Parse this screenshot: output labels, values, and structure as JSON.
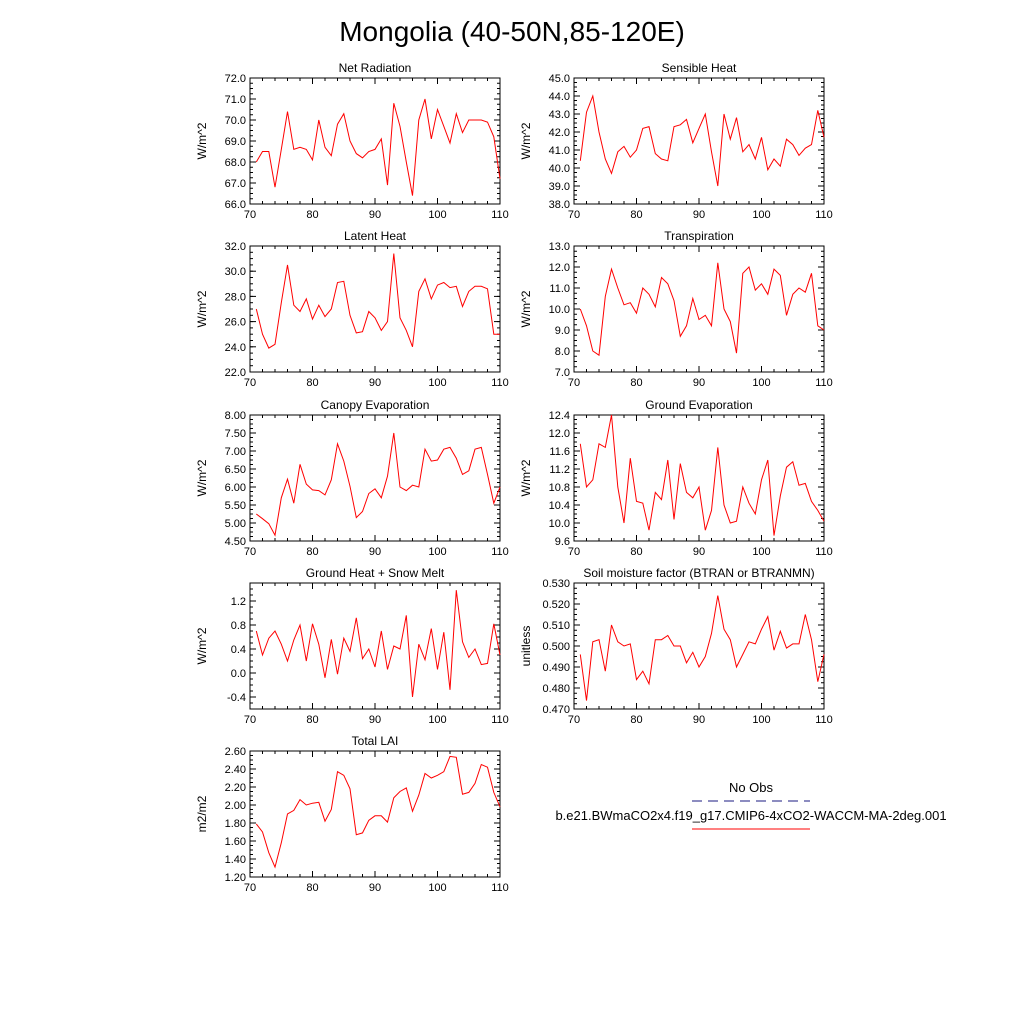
{
  "figure_title": "Mongolia (40-50N,85-120E)",
  "series_color": "#ff0000",
  "legend": {
    "obs_label": "No Obs",
    "obs_color": "#1a1a80",
    "model_label": "b.e21.BWmaCO2x4.f19_g17.CMIP6-4xCO2-WACCM-MA-2deg.001",
    "model_color": "#ff0000"
  },
  "chart_data": [
    {
      "type": "line",
      "title": "Net Radiation",
      "ylabel": "W/m^2",
      "xlabel": "",
      "xlim": [
        70,
        110
      ],
      "xticks": [
        70,
        80,
        90,
        100,
        110
      ],
      "ylim": [
        66,
        72
      ],
      "yticks": [
        "66.0",
        "67.0",
        "68.0",
        "69.0",
        "70.0",
        "71.0",
        "72.0"
      ],
      "x": [
        71,
        72,
        73,
        74,
        75,
        76,
        77,
        78,
        79,
        80,
        81,
        82,
        83,
        84,
        85,
        86,
        87,
        88,
        89,
        90,
        91,
        92,
        93,
        94,
        95,
        96,
        97,
        98,
        99,
        100,
        101,
        102,
        103,
        104,
        105,
        106,
        107,
        108,
        109,
        110
      ],
      "values": [
        68.0,
        68.5,
        68.5,
        66.8,
        68.6,
        70.4,
        68.6,
        68.7,
        68.6,
        68.1,
        70.0,
        68.7,
        68.3,
        69.8,
        70.3,
        69.0,
        68.4,
        68.2,
        68.5,
        68.6,
        69.1,
        66.9,
        70.8,
        69.7,
        68.0,
        66.4,
        70.0,
        71.0,
        69.1,
        70.5,
        69.7,
        68.9,
        70.3,
        69.4,
        70.0,
        70.0,
        70.0,
        69.9,
        69.2,
        67.2
      ]
    },
    {
      "type": "line",
      "title": "Sensible Heat",
      "ylabel": "W/m^2",
      "xlabel": "",
      "xlim": [
        70,
        110
      ],
      "xticks": [
        70,
        80,
        90,
        100,
        110
      ],
      "ylim": [
        38,
        45
      ],
      "yticks": [
        "38.0",
        "39.0",
        "40.0",
        "41.0",
        "42.0",
        "43.0",
        "44.0",
        "45.0"
      ],
      "x": [
        71,
        72,
        73,
        74,
        75,
        76,
        77,
        78,
        79,
        80,
        81,
        82,
        83,
        84,
        85,
        86,
        87,
        88,
        89,
        90,
        91,
        92,
        93,
        94,
        95,
        96,
        97,
        98,
        99,
        100,
        101,
        102,
        103,
        104,
        105,
        106,
        107,
        108,
        109,
        110
      ],
      "values": [
        40.4,
        43.1,
        44.0,
        42.0,
        40.5,
        39.7,
        40.9,
        41.2,
        40.6,
        41.0,
        42.2,
        42.3,
        40.8,
        40.5,
        40.4,
        42.3,
        42.4,
        42.7,
        41.4,
        42.2,
        43.0,
        40.9,
        39.0,
        43.0,
        41.6,
        42.8,
        40.9,
        41.3,
        40.5,
        41.7,
        39.9,
        40.5,
        40.1,
        41.6,
        41.3,
        40.7,
        41.1,
        41.3,
        43.2,
        41.7
      ]
    },
    {
      "type": "line",
      "title": "Latent Heat",
      "ylabel": "W/m^2",
      "xlabel": "",
      "xlim": [
        70,
        110
      ],
      "xticks": [
        70,
        80,
        90,
        100,
        110
      ],
      "ylim": [
        22,
        32
      ],
      "yticks": [
        "22.0",
        "24.0",
        "26.0",
        "28.0",
        "30.0",
        "32.0"
      ],
      "x": [
        71,
        72,
        73,
        74,
        75,
        76,
        77,
        78,
        79,
        80,
        81,
        82,
        83,
        84,
        85,
        86,
        87,
        88,
        89,
        90,
        91,
        92,
        93,
        94,
        95,
        96,
        97,
        98,
        99,
        100,
        101,
        102,
        103,
        104,
        105,
        106,
        107,
        108,
        109,
        110
      ],
      "values": [
        27.0,
        25.0,
        23.9,
        24.2,
        27.5,
        30.5,
        27.3,
        26.8,
        27.8,
        26.2,
        27.3,
        26.4,
        27.0,
        29.1,
        29.2,
        26.5,
        25.1,
        25.2,
        26.8,
        26.3,
        25.3,
        26.0,
        31.4,
        26.3,
        25.3,
        24.0,
        28.4,
        29.4,
        27.8,
        28.9,
        29.1,
        28.7,
        28.8,
        27.2,
        28.4,
        28.8,
        28.8,
        28.6,
        25.0,
        25.0
      ]
    },
    {
      "type": "line",
      "title": "Transpiration",
      "ylabel": "W/m^2",
      "xlabel": "",
      "xlim": [
        70,
        110
      ],
      "xticks": [
        70,
        80,
        90,
        100,
        110
      ],
      "ylim": [
        7,
        13
      ],
      "yticks": [
        "7.0",
        "8.0",
        "9.0",
        "10.0",
        "11.0",
        "12.0",
        "13.0"
      ],
      "x": [
        71,
        72,
        73,
        74,
        75,
        76,
        77,
        78,
        79,
        80,
        81,
        82,
        83,
        84,
        85,
        86,
        87,
        88,
        89,
        90,
        91,
        92,
        93,
        94,
        95,
        96,
        97,
        98,
        99,
        100,
        101,
        102,
        103,
        104,
        105,
        106,
        107,
        108,
        109,
        110
      ],
      "values": [
        10.0,
        9.2,
        8.0,
        7.8,
        10.6,
        11.9,
        11.0,
        10.2,
        10.3,
        9.8,
        11.0,
        10.7,
        10.1,
        11.5,
        11.2,
        10.4,
        8.7,
        9.2,
        10.5,
        9.5,
        9.7,
        9.2,
        12.2,
        10.0,
        9.4,
        7.9,
        11.7,
        12.0,
        10.9,
        11.2,
        10.7,
        11.9,
        11.6,
        9.7,
        10.7,
        11.0,
        10.8,
        11.7,
        9.2,
        9.0
      ]
    },
    {
      "type": "line",
      "title": "Canopy Evaporation",
      "ylabel": "W/m^2",
      "xlabel": "",
      "xlim": [
        70,
        110
      ],
      "xticks": [
        70,
        80,
        90,
        100,
        110
      ],
      "ylim": [
        4.5,
        8.0
      ],
      "yticks": [
        "4.50",
        "5.00",
        "5.50",
        "6.00",
        "6.50",
        "7.00",
        "7.50",
        "8.00"
      ],
      "x": [
        71,
        72,
        73,
        74,
        75,
        76,
        77,
        78,
        79,
        80,
        81,
        82,
        83,
        84,
        85,
        86,
        87,
        88,
        89,
        90,
        91,
        92,
        93,
        94,
        95,
        96,
        97,
        98,
        99,
        100,
        101,
        102,
        103,
        104,
        105,
        106,
        107,
        108,
        109,
        110
      ],
      "values": [
        5.25,
        5.12,
        4.98,
        4.66,
        5.7,
        6.22,
        5.55,
        6.63,
        6.08,
        5.92,
        5.9,
        5.78,
        6.2,
        7.2,
        6.72,
        6.02,
        5.15,
        5.32,
        5.82,
        5.95,
        5.7,
        6.3,
        7.5,
        6.0,
        5.9,
        6.05,
        6.0,
        7.05,
        6.72,
        6.75,
        7.05,
        7.1,
        6.8,
        6.35,
        6.45,
        7.05,
        7.1,
        6.35,
        5.55,
        6.0
      ]
    },
    {
      "type": "line",
      "title": "Ground Evaporation",
      "ylabel": "W/m^2",
      "xlabel": "",
      "xlim": [
        70,
        110
      ],
      "xticks": [
        70,
        80,
        90,
        100,
        110
      ],
      "ylim": [
        9.6,
        12.4
      ],
      "yticks": [
        "9.6",
        "10.0",
        "10.4",
        "10.8",
        "11.2",
        "11.6",
        "12.0",
        "12.4"
      ],
      "x": [
        71,
        72,
        73,
        74,
        75,
        76,
        77,
        78,
        79,
        80,
        81,
        82,
        83,
        84,
        85,
        86,
        87,
        88,
        89,
        90,
        91,
        92,
        93,
        94,
        95,
        96,
        97,
        98,
        99,
        100,
        101,
        102,
        103,
        104,
        105,
        106,
        107,
        108,
        109,
        110
      ],
      "values": [
        11.76,
        10.8,
        10.96,
        11.76,
        11.68,
        12.4,
        10.8,
        10.0,
        11.44,
        10.48,
        10.44,
        9.84,
        10.68,
        10.52,
        11.4,
        10.08,
        11.32,
        10.68,
        10.56,
        10.8,
        9.84,
        10.28,
        11.68,
        10.4,
        10.0,
        10.04,
        10.8,
        10.44,
        10.2,
        10.96,
        11.4,
        9.72,
        10.6,
        11.24,
        11.36,
        10.84,
        10.88,
        10.48,
        10.28,
        10.04
      ]
    },
    {
      "type": "line",
      "title": "Ground Heat + Snow Melt",
      "ylabel": "W/m^2",
      "xlabel": "",
      "xlim": [
        70,
        110
      ],
      "xticks": [
        70,
        80,
        90,
        100,
        110
      ],
      "ylim": [
        -0.6,
        1.5
      ],
      "yticks": [
        "-0.4",
        "0.0",
        "0.4",
        "0.8",
        "1.2"
      ],
      "x": [
        71,
        72,
        73,
        74,
        75,
        76,
        77,
        78,
        79,
        80,
        81,
        82,
        83,
        84,
        85,
        86,
        87,
        88,
        89,
        90,
        91,
        92,
        93,
        94,
        95,
        96,
        97,
        98,
        99,
        100,
        101,
        102,
        103,
        104,
        105,
        106,
        107,
        108,
        109,
        110
      ],
      "values": [
        0.7,
        0.3,
        0.58,
        0.7,
        0.48,
        0.2,
        0.55,
        0.8,
        0.2,
        0.82,
        0.48,
        -0.08,
        0.56,
        -0.02,
        0.58,
        0.36,
        0.92,
        0.24,
        0.4,
        0.1,
        0.7,
        0.06,
        0.45,
        0.4,
        0.96,
        -0.4,
        0.48,
        0.22,
        0.74,
        0.06,
        0.68,
        -0.28,
        1.38,
        0.52,
        0.26,
        0.4,
        0.14,
        0.16,
        0.82,
        0.3
      ]
    },
    {
      "type": "line",
      "title": "Soil moisture factor (BTRAN or BTRANMN)",
      "ylabel": "unitless",
      "xlabel": "",
      "xlim": [
        70,
        110
      ],
      "xticks": [
        70,
        80,
        90,
        100,
        110
      ],
      "ylim": [
        0.47,
        0.53
      ],
      "yticks": [
        "0.470",
        "0.480",
        "0.490",
        "0.500",
        "0.510",
        "0.520",
        "0.530"
      ],
      "x": [
        71,
        72,
        73,
        74,
        75,
        76,
        77,
        78,
        79,
        80,
        81,
        82,
        83,
        84,
        85,
        86,
        87,
        88,
        89,
        90,
        91,
        92,
        93,
        94,
        95,
        96,
        97,
        98,
        99,
        100,
        101,
        102,
        103,
        104,
        105,
        106,
        107,
        108,
        109,
        110
      ],
      "values": [
        0.496,
        0.474,
        0.502,
        0.503,
        0.488,
        0.51,
        0.502,
        0.5,
        0.501,
        0.484,
        0.488,
        0.482,
        0.503,
        0.503,
        0.505,
        0.5,
        0.5,
        0.492,
        0.497,
        0.49,
        0.495,
        0.506,
        0.524,
        0.508,
        0.503,
        0.49,
        0.496,
        0.502,
        0.501,
        0.508,
        0.514,
        0.498,
        0.507,
        0.499,
        0.501,
        0.501,
        0.515,
        0.503,
        0.483,
        0.496
      ]
    },
    {
      "type": "line",
      "title": "Total LAI",
      "ylabel": "m2/m2",
      "xlabel": "",
      "xlim": [
        70,
        110
      ],
      "xticks": [
        70,
        80,
        90,
        100,
        110
      ],
      "ylim": [
        1.2,
        2.6
      ],
      "yticks": [
        "1.20",
        "1.40",
        "1.60",
        "1.80",
        "2.00",
        "2.20",
        "2.40",
        "2.60"
      ],
      "x": [
        71,
        72,
        73,
        74,
        75,
        76,
        77,
        78,
        79,
        80,
        81,
        82,
        83,
        84,
        85,
        86,
        87,
        88,
        89,
        90,
        91,
        92,
        93,
        94,
        95,
        96,
        97,
        98,
        99,
        100,
        101,
        102,
        103,
        104,
        105,
        106,
        107,
        108,
        109,
        110
      ],
      "values": [
        1.79,
        1.7,
        1.47,
        1.31,
        1.58,
        1.9,
        1.94,
        2.06,
        2.0,
        2.02,
        2.03,
        1.82,
        1.95,
        2.37,
        2.33,
        2.18,
        1.67,
        1.69,
        1.83,
        1.88,
        1.88,
        1.81,
        2.08,
        2.15,
        2.19,
        1.93,
        2.11,
        2.35,
        2.3,
        2.33,
        2.37,
        2.54,
        2.53,
        2.12,
        2.14,
        2.24,
        2.45,
        2.42,
        2.14,
        1.98
      ]
    }
  ]
}
